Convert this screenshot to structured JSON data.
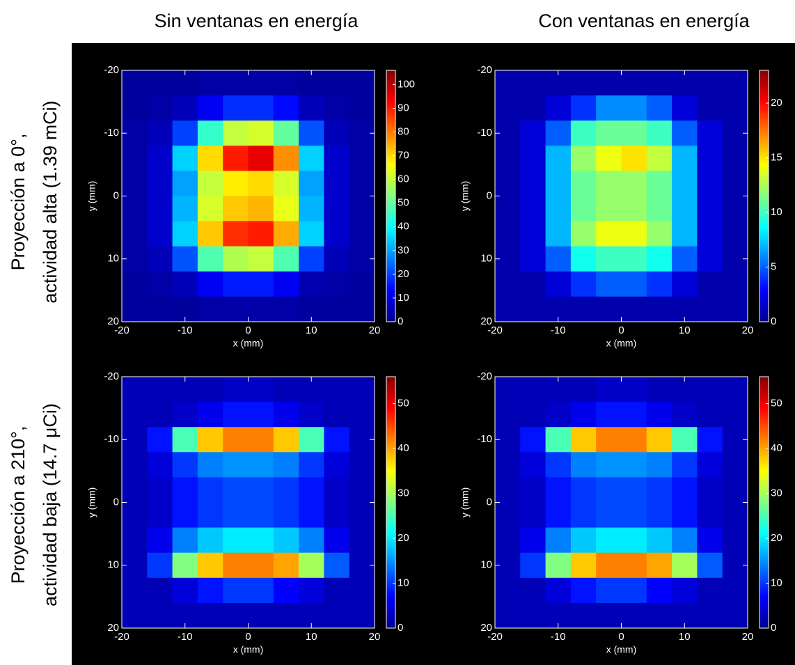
{
  "column_titles": [
    "Sin ventanas en energía",
    "Con ventanas en energía"
  ],
  "row_titles": [
    [
      "Proyección a 0°,",
      "actividad alta (1.39 mCi)"
    ],
    [
      "Proyección a 210°,",
      "actividad baja (14.7 μCi)"
    ]
  ],
  "chart_data": [
    {
      "type": "heatmap",
      "xlabel": "x (mm)",
      "ylabel": "y (mm)",
      "colormap": "jet",
      "xbins": [
        -20,
        -16,
        -12,
        -8,
        -4,
        0,
        4,
        8,
        12,
        16,
        20
      ],
      "ybins": [
        -20,
        -16,
        -12,
        -8,
        -4,
        0,
        4,
        8,
        12,
        16,
        20
      ],
      "xlim": [
        -20,
        20
      ],
      "ylim": [
        -20,
        20
      ],
      "y_reversed": true,
      "xticks": [
        -20,
        -10,
        0,
        10,
        20
      ],
      "yticks": [
        -20,
        -10,
        0,
        10,
        20
      ],
      "clim": [
        0,
        106
      ],
      "cticks": [
        0,
        10,
        20,
        30,
        40,
        50,
        60,
        70,
        80,
        90,
        100
      ],
      "values": [
        [
          3,
          3,
          3,
          4,
          4,
          4,
          4,
          3,
          3,
          3
        ],
        [
          3,
          4,
          6,
          12,
          18,
          18,
          14,
          6,
          4,
          3
        ],
        [
          4,
          6,
          20,
          45,
          60,
          62,
          50,
          22,
          6,
          4
        ],
        [
          4,
          8,
          35,
          70,
          90,
          95,
          78,
          35,
          8,
          4
        ],
        [
          4,
          8,
          30,
          60,
          68,
          70,
          62,
          30,
          8,
          4
        ],
        [
          4,
          8,
          32,
          62,
          72,
          74,
          64,
          32,
          8,
          4
        ],
        [
          4,
          8,
          35,
          72,
          88,
          90,
          75,
          35,
          8,
          4
        ],
        [
          4,
          6,
          22,
          48,
          58,
          60,
          48,
          20,
          6,
          4
        ],
        [
          3,
          4,
          6,
          12,
          16,
          16,
          12,
          5,
          4,
          3
        ],
        [
          3,
          3,
          3,
          4,
          4,
          4,
          4,
          3,
          3,
          3
        ]
      ]
    },
    {
      "type": "heatmap",
      "xlabel": "x (mm)",
      "ylabel": "y (mm)",
      "colormap": "jet",
      "xbins": [
        -20,
        -16,
        -12,
        -8,
        -4,
        0,
        4,
        8,
        12,
        16,
        20
      ],
      "ybins": [
        -20,
        -16,
        -12,
        -8,
        -4,
        0,
        4,
        8,
        12,
        16,
        20
      ],
      "xlim": [
        -20,
        20
      ],
      "ylim": [
        -20,
        20
      ],
      "y_reversed": true,
      "xticks": [
        -20,
        -10,
        0,
        10,
        20
      ],
      "yticks": [
        -20,
        -10,
        0,
        10,
        20
      ],
      "clim": [
        0,
        23
      ],
      "cticks": [
        0,
        5,
        10,
        15,
        20
      ],
      "values": [
        [
          1,
          1,
          1,
          1,
          1,
          1,
          1,
          1,
          1,
          1
        ],
        [
          1,
          1,
          2,
          4,
          6,
          6,
          5,
          2,
          1,
          1
        ],
        [
          1,
          2,
          5,
          10,
          11,
          11,
          10,
          5,
          2,
          1
        ],
        [
          1,
          2,
          7,
          12,
          14,
          15,
          13,
          7,
          2,
          1
        ],
        [
          1,
          2,
          7,
          11,
          12,
          12,
          11,
          7,
          2,
          1
        ],
        [
          1,
          2,
          7,
          11,
          12,
          12,
          11,
          7,
          2,
          1
        ],
        [
          1,
          2,
          7,
          12,
          14,
          14,
          12,
          7,
          2,
          1
        ],
        [
          1,
          2,
          5,
          9,
          10,
          10,
          9,
          5,
          2,
          1
        ],
        [
          1,
          1,
          2,
          4,
          5,
          5,
          4,
          2,
          1,
          1
        ],
        [
          1,
          1,
          1,
          1,
          1,
          1,
          1,
          1,
          1,
          1
        ]
      ]
    },
    {
      "type": "heatmap",
      "xlabel": "x (mm)",
      "ylabel": "y (mm)",
      "colormap": "jet",
      "xbins": [
        -20,
        -16,
        -12,
        -8,
        -4,
        0,
        4,
        8,
        12,
        16,
        20
      ],
      "ybins": [
        -20,
        -16,
        -12,
        -8,
        -4,
        0,
        4,
        8,
        12,
        16,
        20
      ],
      "xlim": [
        -20,
        20
      ],
      "ylim": [
        -20,
        20
      ],
      "y_reversed": true,
      "xticks": [
        -20,
        -10,
        0,
        10,
        20
      ],
      "yticks": [
        -20,
        -10,
        0,
        10,
        20
      ],
      "clim": [
        0,
        56
      ],
      "cticks": [
        0,
        10,
        20,
        30,
        40,
        50
      ],
      "values": [
        [
          3,
          3,
          3,
          3,
          4,
          4,
          3,
          3,
          3,
          3
        ],
        [
          3,
          3,
          4,
          6,
          8,
          8,
          6,
          4,
          3,
          3
        ],
        [
          3,
          8,
          25,
          38,
          42,
          42,
          38,
          25,
          8,
          3
        ],
        [
          3,
          5,
          10,
          14,
          15,
          15,
          14,
          10,
          5,
          3
        ],
        [
          3,
          4,
          8,
          10,
          11,
          11,
          10,
          8,
          4,
          3
        ],
        [
          3,
          4,
          8,
          10,
          11,
          11,
          10,
          8,
          4,
          3
        ],
        [
          3,
          6,
          14,
          18,
          20,
          20,
          18,
          14,
          6,
          3
        ],
        [
          3,
          10,
          28,
          38,
          42,
          42,
          40,
          30,
          12,
          3
        ],
        [
          3,
          3,
          5,
          8,
          10,
          10,
          7,
          5,
          3,
          3
        ],
        [
          3,
          3,
          3,
          3,
          3,
          3,
          3,
          3,
          3,
          3
        ]
      ]
    },
    {
      "type": "heatmap",
      "xlabel": "x (mm)",
      "ylabel": "y (mm)",
      "colormap": "jet",
      "xbins": [
        -20,
        -16,
        -12,
        -8,
        -4,
        0,
        4,
        8,
        12,
        16,
        20
      ],
      "ybins": [
        -20,
        -16,
        -12,
        -8,
        -4,
        0,
        4,
        8,
        12,
        16,
        20
      ],
      "xlim": [
        -20,
        20
      ],
      "ylim": [
        -20,
        20
      ],
      "y_reversed": true,
      "xticks": [
        -20,
        -10,
        0,
        10,
        20
      ],
      "yticks": [
        -20,
        -10,
        0,
        10,
        20
      ],
      "clim": [
        0,
        56
      ],
      "cticks": [
        0,
        10,
        20,
        30,
        40,
        50
      ],
      "values": [
        [
          3,
          3,
          3,
          3,
          4,
          4,
          3,
          3,
          3,
          3
        ],
        [
          3,
          3,
          4,
          6,
          8,
          8,
          6,
          4,
          3,
          3
        ],
        [
          3,
          8,
          25,
          38,
          42,
          42,
          38,
          25,
          8,
          3
        ],
        [
          3,
          5,
          10,
          14,
          15,
          15,
          14,
          10,
          5,
          3
        ],
        [
          3,
          4,
          8,
          10,
          11,
          11,
          10,
          8,
          4,
          3
        ],
        [
          3,
          4,
          8,
          10,
          11,
          11,
          10,
          8,
          4,
          3
        ],
        [
          3,
          6,
          14,
          18,
          20,
          20,
          18,
          14,
          6,
          3
        ],
        [
          3,
          10,
          28,
          38,
          42,
          42,
          40,
          30,
          12,
          3
        ],
        [
          3,
          3,
          5,
          8,
          10,
          10,
          7,
          5,
          3,
          3
        ],
        [
          3,
          3,
          3,
          3,
          3,
          3,
          3,
          3,
          3,
          3
        ]
      ]
    }
  ]
}
